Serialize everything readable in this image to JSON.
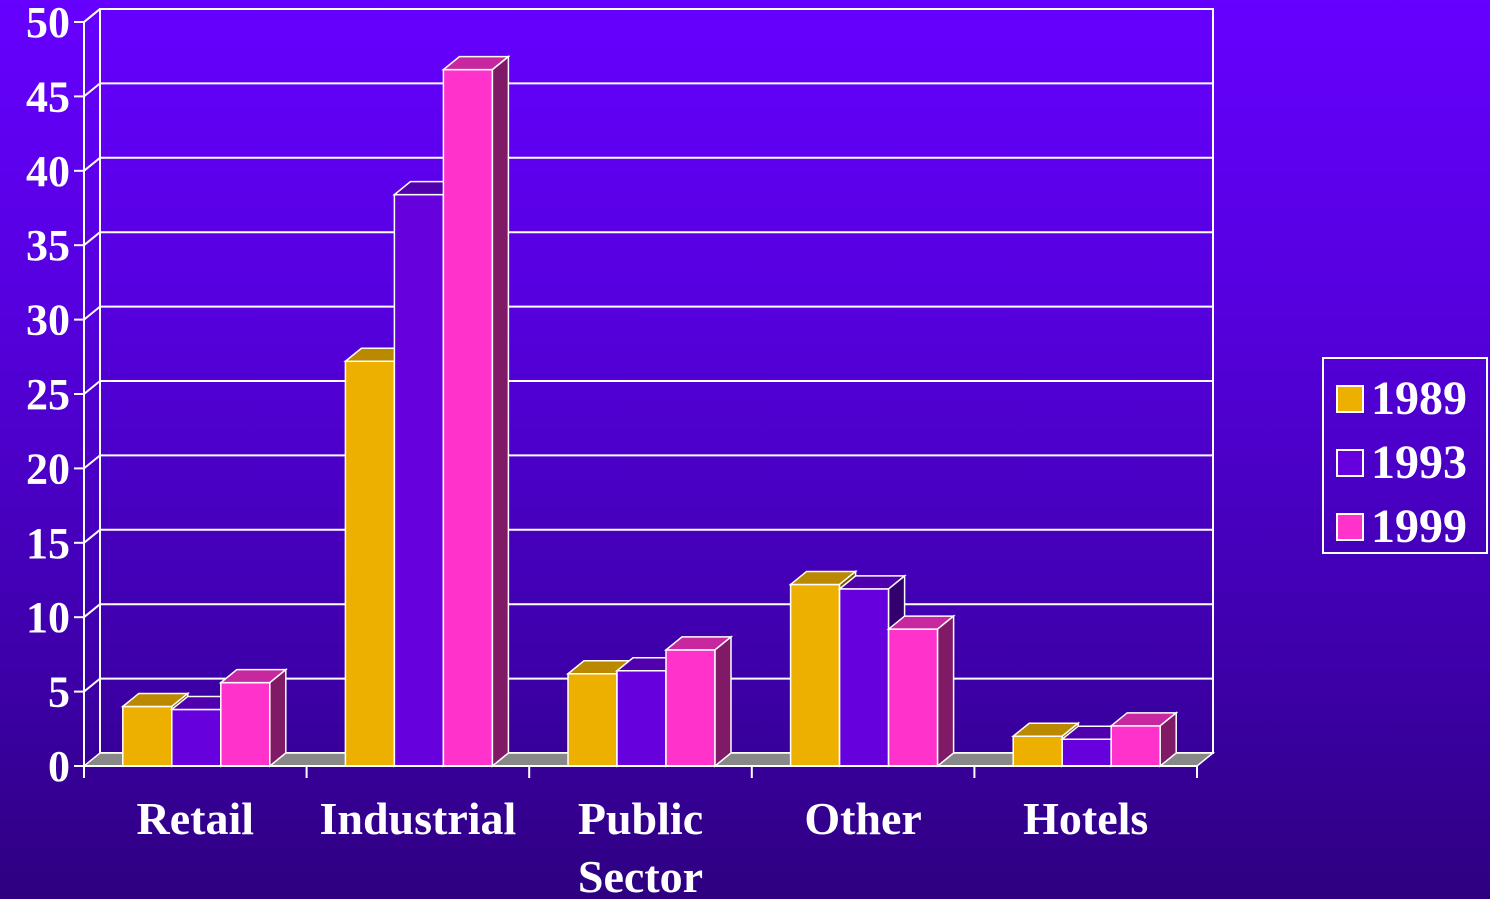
{
  "chart_data": {
    "type": "bar",
    "title": "",
    "xlabel": "",
    "ylabel": "",
    "categories": [
      "Retail",
      "Industrial",
      "Public Sector",
      "Other",
      "Hotels"
    ],
    "category_lines": [
      [
        "Retail"
      ],
      [
        "Industrial"
      ],
      [
        "Public",
        "Sector"
      ],
      [
        "Other"
      ],
      [
        "Hotels"
      ]
    ],
    "series": [
      {
        "name": "1989",
        "values": [
          4,
          27.2,
          6.2,
          12.2,
          2
        ]
      },
      {
        "name": "1993",
        "values": [
          3.8,
          38.4,
          6.4,
          11.9,
          1.8
        ]
      },
      {
        "name": "1999",
        "values": [
          5.6,
          46.8,
          7.8,
          9.2,
          2.7
        ]
      }
    ],
    "ylim": [
      0,
      50
    ],
    "yticks": [
      "0",
      "5",
      "10",
      "15",
      "20",
      "25",
      "30",
      "35",
      "40",
      "45",
      "50"
    ],
    "grid": true,
    "legend_position": "right",
    "colors": {
      "1989": "#eeb000",
      "1993": "#6600dd",
      "1999": "#ff33cc",
      "grid": "#ffffff",
      "floor": "#888888"
    },
    "style": "3d"
  }
}
